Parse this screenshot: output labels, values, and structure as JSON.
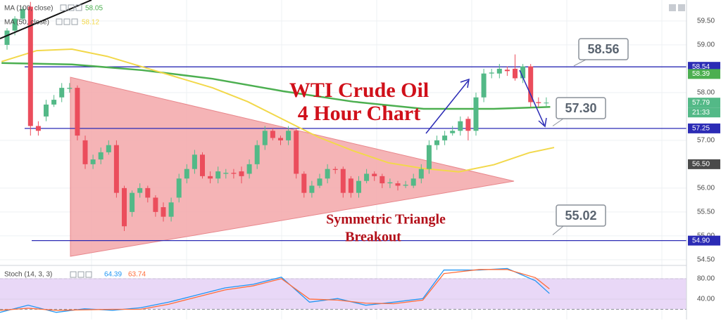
{
  "chart_data": [
    {
      "type": "candlestick",
      "title": "WTI Crude Oil",
      "subtitle": "4 Hour Chart",
      "open": [
        59.0,
        59.3,
        59.55,
        59.8,
        57.3,
        57.5,
        57.75,
        57.9,
        58.08,
        58.1,
        57.0,
        56.5,
        56.6,
        56.75,
        56.9,
        56.0,
        55.5,
        55.9,
        56.0,
        55.8,
        55.6,
        55.4,
        55.8,
        56.2,
        56.4,
        56.7,
        56.25,
        56.2,
        56.3,
        56.32,
        56.35,
        56.3,
        56.5,
        56.9,
        57.2,
        57.05,
        57.0,
        57.2,
        56.3,
        55.9,
        56.05,
        56.2,
        56.4,
        56.4,
        56.2,
        55.9,
        56.15,
        56.3,
        56.25,
        56.1,
        56.1,
        56.05,
        56.05,
        56.2,
        56.4,
        56.9,
        57.0,
        57.15,
        57.2,
        57.45,
        57.2,
        57.9,
        58.4,
        58.4,
        58.48,
        58.5,
        58.3,
        58.55,
        57.8,
        57.78
      ],
      "high": [
        59.35,
        59.6,
        59.8,
        59.9,
        57.4,
        57.85,
        57.95,
        58.2,
        58.2,
        58.15,
        57.1,
        56.7,
        56.85,
        57.0,
        57.0,
        56.05,
        55.95,
        56.1,
        56.05,
        55.85,
        55.7,
        55.8,
        56.3,
        56.5,
        56.8,
        56.75,
        56.35,
        56.45,
        56.4,
        56.4,
        56.45,
        56.6,
        57.0,
        57.3,
        57.25,
        57.1,
        57.3,
        57.25,
        56.35,
        56.15,
        56.3,
        56.5,
        56.45,
        56.45,
        56.25,
        56.25,
        56.4,
        56.35,
        56.3,
        56.2,
        56.15,
        56.15,
        56.3,
        56.5,
        57.0,
        57.1,
        57.2,
        57.3,
        57.5,
        57.5,
        58.0,
        58.5,
        58.5,
        58.6,
        58.55,
        58.8,
        58.6,
        58.6,
        57.9,
        57.9
      ],
      "low": [
        58.9,
        59.2,
        59.5,
        57.1,
        57.1,
        57.4,
        57.7,
        57.8,
        58.0,
        57.0,
        56.4,
        56.4,
        56.5,
        56.7,
        55.8,
        55.1,
        55.4,
        55.8,
        55.7,
        55.4,
        55.3,
        55.3,
        55.7,
        56.1,
        56.3,
        56.2,
        56.1,
        56.1,
        56.2,
        56.2,
        56.1,
        56.2,
        56.4,
        56.8,
        57.0,
        56.9,
        56.9,
        56.2,
        55.8,
        55.8,
        56.0,
        56.1,
        56.3,
        55.8,
        55.8,
        55.8,
        56.1,
        56.15,
        56.0,
        56.0,
        55.95,
        56.0,
        56.0,
        56.1,
        56.3,
        56.8,
        56.9,
        57.1,
        57.1,
        57.0,
        57.1,
        57.8,
        58.3,
        58.3,
        58.35,
        58.25,
        58.2,
        57.7,
        57.7,
        57.7
      ],
      "close": [
        59.3,
        59.55,
        59.75,
        57.3,
        57.2,
        57.75,
        57.85,
        58.1,
        58.1,
        57.1,
        56.5,
        56.6,
        56.75,
        56.9,
        55.9,
        55.2,
        55.9,
        56.0,
        55.8,
        55.5,
        55.4,
        55.7,
        56.2,
        56.4,
        56.7,
        56.25,
        56.2,
        56.35,
        56.32,
        56.3,
        56.25,
        56.5,
        56.9,
        57.2,
        57.05,
        57.0,
        57.2,
        56.3,
        55.9,
        56.05,
        56.2,
        56.4,
        56.38,
        55.9,
        55.9,
        56.15,
        56.3,
        56.25,
        56.1,
        56.12,
        56.05,
        56.07,
        56.2,
        56.4,
        56.9,
        57.0,
        57.1,
        57.2,
        57.4,
        57.2,
        57.9,
        58.4,
        58.42,
        58.5,
        58.45,
        58.3,
        58.55,
        57.8,
        57.78,
        57.79
      ],
      "up_color": "#53b987",
      "down_color": "#eb4d5c",
      "ylim": [
        54.38,
        59.94
      ],
      "yticks": [
        {
          "value": 54.5,
          "label": "54.50"
        },
        {
          "value": 55,
          "label": "55.00"
        },
        {
          "value": 55.5,
          "label": "55.50"
        },
        {
          "value": 56,
          "label": "56.00"
        },
        {
          "value": 57,
          "label": "57.00"
        },
        {
          "value": 58,
          "label": "58.00"
        },
        {
          "value": 59,
          "label": "59.00"
        },
        {
          "value": 59.5,
          "label": "59.50"
        }
      ],
      "grid": true,
      "series": [
        {
          "name": "MA (100, close)",
          "color": "#4caf50",
          "last": 58.05,
          "x": [
            -0.7,
            8.3,
            17.3,
            26.3,
            35.3,
            44.3,
            53.3,
            62.3,
            69.5
          ],
          "values": [
            58.62,
            58.59,
            58.47,
            58.29,
            58.03,
            57.81,
            57.66,
            57.66,
            57.7
          ]
        },
        {
          "name": "MA (50, close)",
          "color": "#f2d84a",
          "last": 58.12,
          "x": [
            -0.7,
            3.8,
            8.3,
            12.8,
            17.3,
            21.8,
            26.3,
            30.8,
            35.3,
            39.8,
            44.3,
            48.8,
            53.3,
            57.8,
            62.3,
            66.8,
            70.0
          ],
          "values": [
            58.65,
            58.88,
            58.91,
            58.76,
            58.54,
            58.32,
            58.1,
            57.81,
            57.44,
            57.07,
            56.78,
            56.53,
            56.41,
            56.34,
            56.49,
            56.74,
            56.85
          ]
        }
      ],
      "level_color": "#2b2bb5",
      "levels": [
        {
          "value": 58.54,
          "label": "58.54"
        },
        {
          "value": 57.25,
          "label": "57.25"
        },
        {
          "value": 54.9,
          "label": "54.90"
        }
      ],
      "price_tags": [
        {
          "value": 58.39,
          "label": "58.39",
          "color": "#4caf50"
        },
        {
          "value": 57.79,
          "label": "57.79",
          "color": "#53b987"
        },
        {
          "value": 56.5,
          "label": "56.50",
          "color": "#4a4a4a"
        }
      ],
      "countdown": "21:33",
      "callouts": [
        {
          "value": 58.56,
          "label": "58.56"
        },
        {
          "value": 57.3,
          "label": "57.30"
        },
        {
          "value": 55.02,
          "label": "55.02"
        }
      ],
      "annotations": [
        "Symmetric Triangle",
        "Breakout"
      ]
    },
    {
      "type": "line",
      "title": "Stoch (14, 3, 3)",
      "series": [
        {
          "color": "#2196f3",
          "last": 64.39,
          "x": [
            -0.9,
            2.7,
            6.3,
            9.9,
            13.5,
            17.1,
            20.7,
            24.3,
            27.9,
            31.5,
            35.1,
            38.7,
            42.3,
            45.9,
            49.5,
            53.2,
            55.9,
            60.4,
            64.0,
            67.6,
            69.4
          ],
          "values": [
            14,
            28,
            14,
            21,
            18,
            23,
            34,
            48,
            62,
            69,
            83,
            34,
            41,
            28,
            34,
            41,
            97,
            97,
            100,
            76,
            51
          ]
        },
        {
          "color": "#ff6d3a",
          "last": 63.74,
          "x": [
            -0.9,
            2.7,
            6.3,
            9.9,
            13.5,
            17.1,
            20.7,
            24.3,
            27.9,
            31.5,
            35.1,
            38.7,
            42.3,
            45.9,
            49.5,
            53.2,
            55.9,
            60.4,
            64.0,
            67.6,
            69.4
          ],
          "values": [
            18,
            22,
            18,
            19,
            20,
            20,
            30,
            44,
            58,
            66,
            80,
            40,
            38,
            32,
            31,
            38,
            90,
            98,
            98,
            82,
            60
          ]
        }
      ],
      "ylim": [
        0,
        106
      ],
      "yticks": [
        {
          "value": 40,
          "label": "40.00"
        },
        {
          "value": 80,
          "label": "80.00"
        }
      ],
      "band": [
        20,
        80
      ]
    }
  ]
}
